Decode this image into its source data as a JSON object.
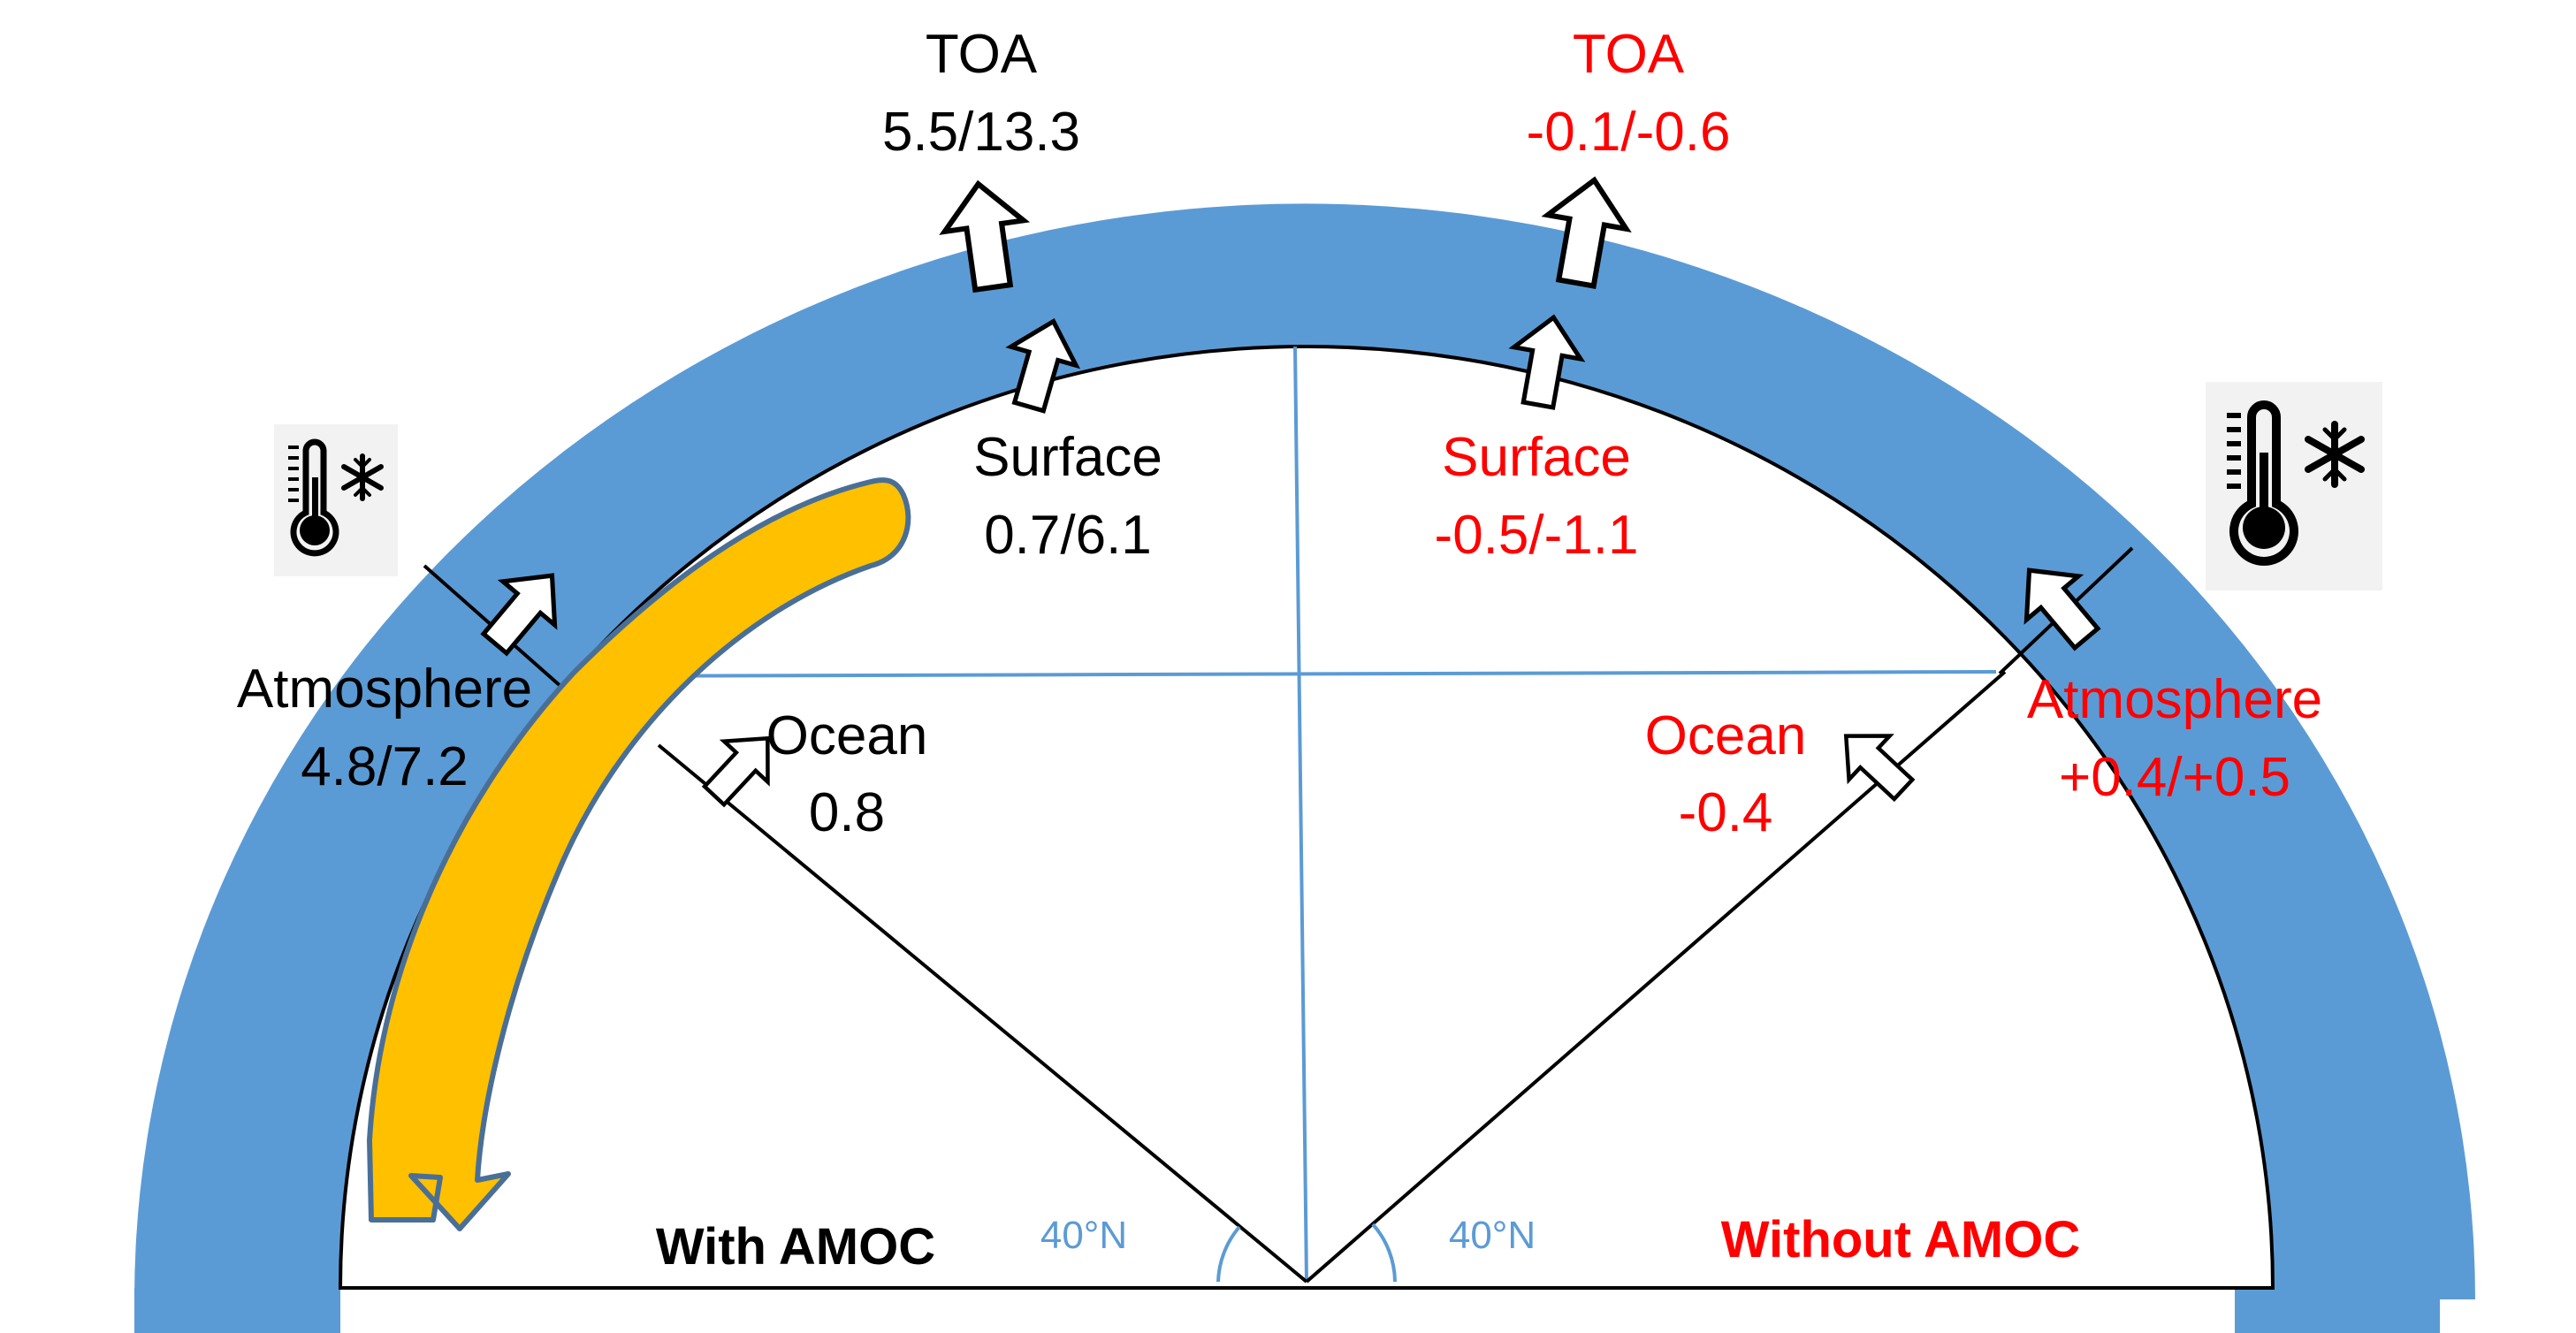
{
  "colors": {
    "ring": "#5b9bd5",
    "flow": "#ffc000",
    "flow_edge": "#4a6f97",
    "lat_line": "#5b9bd5",
    "black": "#000000",
    "red": "#ff0000"
  },
  "with_amoc": {
    "title": "With AMOC",
    "toa": {
      "name": "TOA",
      "value": "5.5/13.3"
    },
    "surface": {
      "name": "Surface",
      "value": "0.7/6.1"
    },
    "atmosphere": {
      "name": "Atmosphere",
      "value": "4.8/7.2"
    },
    "ocean": {
      "name": "Ocean",
      "value": "0.8"
    },
    "latitude": "40°N",
    "icon": "thermometer-snowflake-icon"
  },
  "without_amoc": {
    "title": "Without AMOC",
    "toa": {
      "name": "TOA",
      "value": "-0.1/-0.6"
    },
    "surface": {
      "name": "Surface",
      "value": "-0.5/-1.1"
    },
    "atmosphere": {
      "name": "Atmosphere",
      "value": "+0.4/+0.5"
    },
    "ocean": {
      "name": "Ocean",
      "value": "-0.4"
    },
    "latitude": "40°N",
    "icon": "thermometer-snowflake-icon"
  }
}
